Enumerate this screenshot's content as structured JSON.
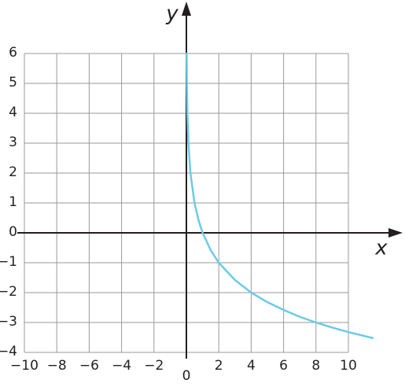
{
  "chart_data": {
    "type": "line",
    "x_label": "x",
    "y_label": "y",
    "x": [
      0.0156,
      0.03125,
      0.0625,
      0.125,
      0.25,
      0.5,
      0.75,
      1,
      1.5,
      2,
      3,
      4,
      5,
      6,
      7,
      8,
      9,
      10,
      11.5
    ],
    "series": [
      {
        "color": "#6ccbe6",
        "values": [
          6,
          5,
          4,
          3,
          2,
          1,
          0.42,
          0,
          -0.58,
          -1,
          -1.58,
          -2,
          -2.32,
          -2.58,
          -2.81,
          -3,
          -3.17,
          -3.32,
          -3.52
        ]
      }
    ],
    "xlim": [
      -10,
      10
    ],
    "ylim": [
      -4,
      6
    ],
    "xticks": [
      {
        "value": -10,
        "label": "−10"
      },
      {
        "value": -8,
        "label": "−8"
      },
      {
        "value": -6,
        "label": "−6"
      },
      {
        "value": -4,
        "label": "−4"
      },
      {
        "value": -2,
        "label": "−2"
      },
      0,
      2,
      4,
      6,
      8,
      10
    ],
    "yticks": [
      {
        "value": -4,
        "label": "−4"
      },
      {
        "value": -3,
        "label": "−3"
      },
      {
        "value": -2,
        "label": "−2"
      },
      {
        "value": -1,
        "label": "−1"
      },
      0,
      1,
      2,
      3,
      4,
      5,
      6
    ],
    "grid": true
  }
}
